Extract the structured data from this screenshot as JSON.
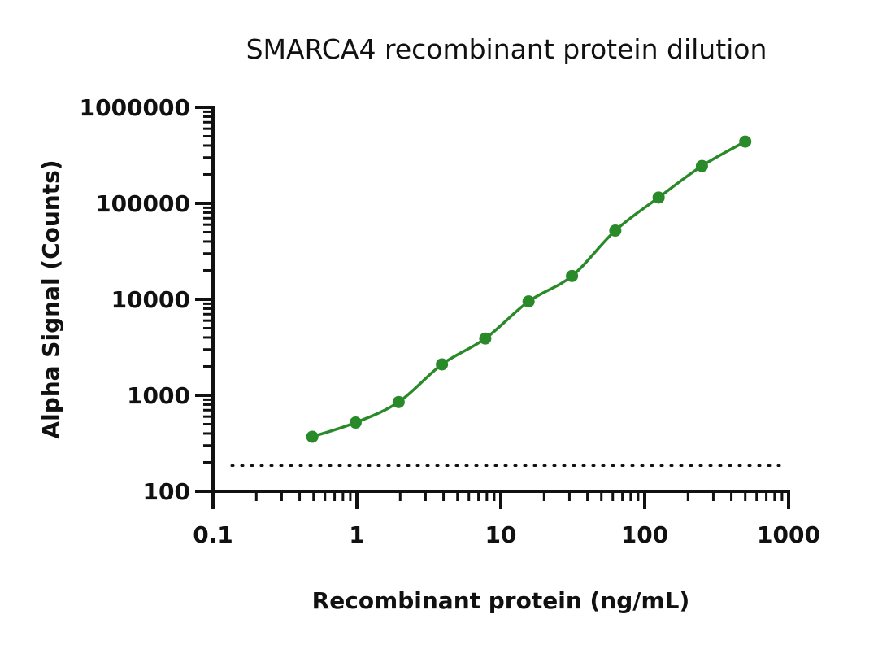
{
  "chart_data": {
    "type": "scatter",
    "title": "SMARCA4 recombinant protein dilution",
    "xlabel": "Recombinant protein (ng/mL)",
    "ylabel": "Alpha Signal (Counts)",
    "x_scale": "log",
    "y_scale": "log",
    "xlim": [
      0.1,
      1000
    ],
    "ylim": [
      100,
      1000000
    ],
    "x_tick_labels": [
      "0.1",
      "1",
      "10",
      "100",
      "1000"
    ],
    "y_tick_labels": [
      "100",
      "1000",
      "10000",
      "100000",
      "1000000"
    ],
    "grid": false,
    "legend": "none",
    "series": [
      {
        "color": "#2a8a2a",
        "x": [
          0.49,
          0.98,
          1.95,
          3.9,
          7.8,
          15.6,
          31.25,
          62.5,
          125,
          250,
          500
        ],
        "y": [
          370,
          520,
          850,
          2100,
          3900,
          9500,
          17500,
          52000,
          115000,
          245000,
          440000
        ],
        "fit_curve": true
      }
    ],
    "background_line": {
      "y": 185,
      "style": "dotted",
      "color": "#111111"
    }
  }
}
